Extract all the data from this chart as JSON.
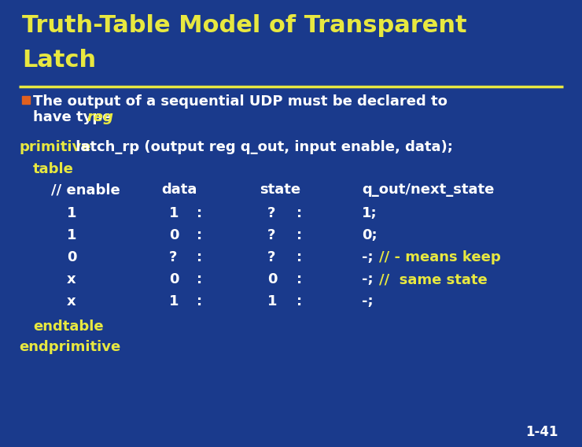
{
  "bg_color": "#1a3a8c",
  "title_line1": "Truth-Table Model of Transparent",
  "title_line2": "Latch",
  "title_color": "#e8e840",
  "title_fontsize": 22,
  "underline_color": "#e8e840",
  "bullet_color": "#e06020",
  "white_color": "#ffffff",
  "yellow_color": "#e8e840",
  "body_fontsize": 13,
  "slide_number": "1-41",
  "keyword_primitive": "primitive",
  "rest_of_primitive": " latch_rp (output reg q_out, input enable, data);",
  "keyword_table": "table",
  "keyword_endtable": "endtable",
  "keyword_endprimitive": "endprimitive",
  "header": [
    "// enable",
    "data",
    "state",
    "q_out/next_state"
  ],
  "rows": [
    [
      "1",
      "1",
      ":",
      "?",
      ":",
      "1;"
    ],
    [
      "1",
      "0",
      ":",
      "?",
      ":",
      "0;"
    ],
    [
      "0",
      "?",
      ":",
      "?",
      ":",
      "-; // - means keep"
    ],
    [
      "x",
      "0",
      ":",
      "0",
      ":",
      "-; //  same state"
    ],
    [
      "x",
      "1",
      ":",
      "1",
      ":",
      "-;"
    ]
  ]
}
